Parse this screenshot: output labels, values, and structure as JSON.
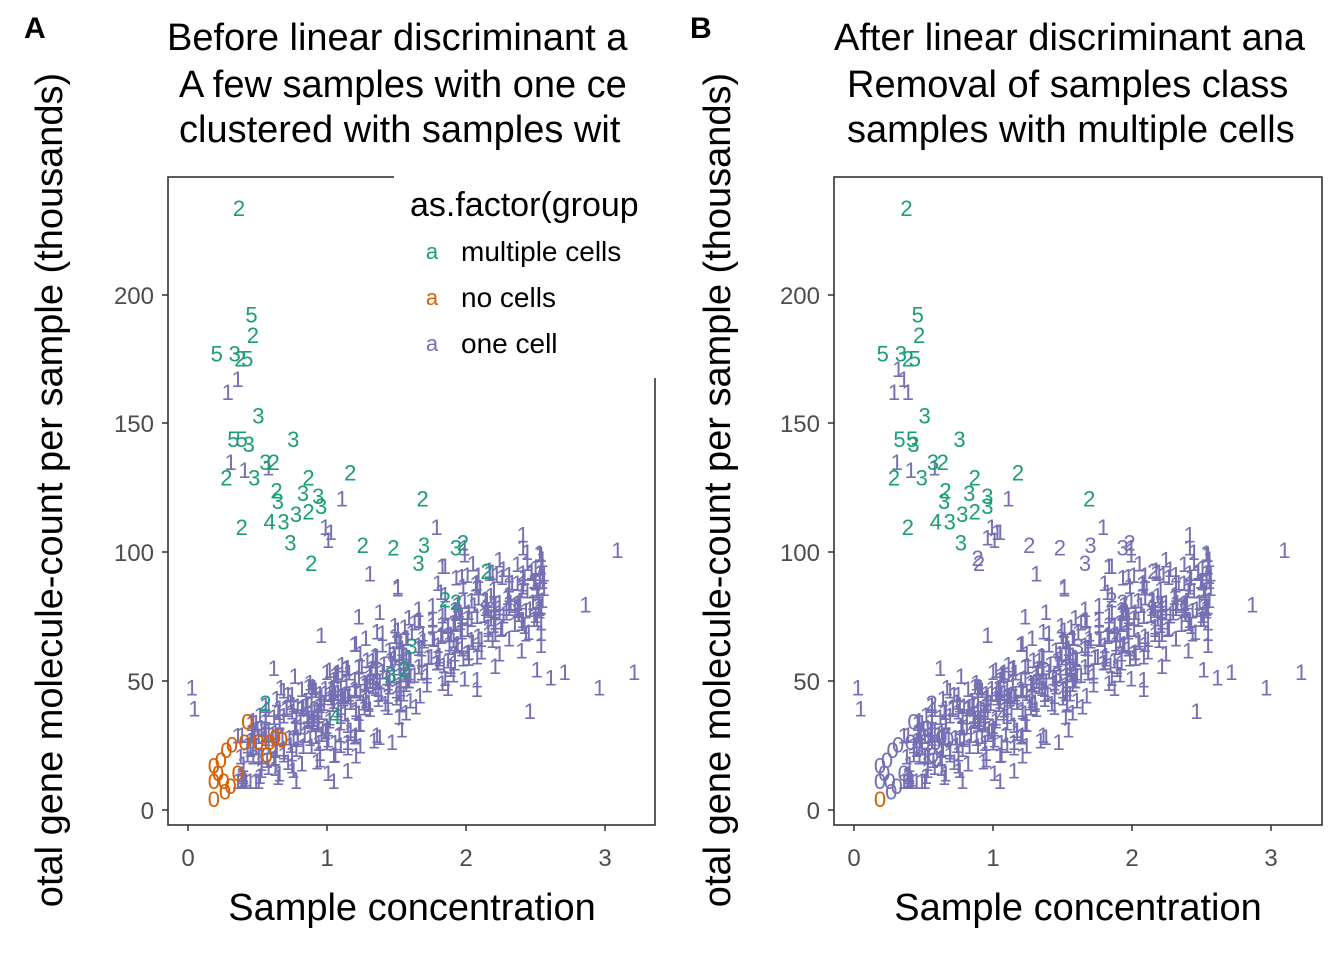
{
  "colors": {
    "multiple cells": "#1b9e77",
    "no cells": "#d95f02",
    "one cell": "#7570b3"
  },
  "chart_data": [
    {
      "type": "scatter",
      "panel_tag": "A",
      "title": [
        "Before linear discriminant a",
        "A few samples with one ce",
        "clustered with samples wit"
      ],
      "xlabel": "Sample concentration",
      "ylabel": "otal gene molecule-count per sample (thousands)",
      "xlim": [
        -0.15,
        3.35
      ],
      "ylim": [
        -5,
        245
      ],
      "xticks": [
        "0",
        "1",
        "2",
        "3"
      ],
      "yticks": [
        "0",
        "50",
        "100",
        "150",
        "200"
      ],
      "grid": false,
      "legend": {
        "title": "as.factor(group",
        "key_symbol": "a",
        "placement": "top-right",
        "entries": [
          "multiple cells",
          "no cells",
          "one cell"
        ]
      },
      "series": [
        {
          "name": "multiple cells",
          "points": [
            [
              0.36,
              233,
              "2"
            ],
            [
              0.45,
              192,
              "5"
            ],
            [
              0.46,
              184,
              "2"
            ],
            [
              0.2,
              177,
              "5"
            ],
            [
              0.33,
              177,
              "3"
            ],
            [
              0.37,
              175,
              "2"
            ],
            [
              0.42,
              175,
              "5"
            ],
            [
              0.5,
              153,
              "3"
            ],
            [
              0.32,
              144,
              "5"
            ],
            [
              0.38,
              144,
              "5"
            ],
            [
              0.43,
              142,
              "3"
            ],
            [
              0.55,
              135,
              "3"
            ],
            [
              0.61,
              135,
              "2"
            ],
            [
              0.75,
              144,
              "3"
            ],
            [
              0.27,
              129,
              "2"
            ],
            [
              0.47,
              129,
              "3"
            ],
            [
              0.86,
              129,
              "2"
            ],
            [
              1.16,
              131,
              "2"
            ],
            [
              0.63,
              124,
              "2"
            ],
            [
              0.82,
              123,
              "3"
            ],
            [
              0.93,
              122,
              "3"
            ],
            [
              0.64,
              120,
              "3"
            ],
            [
              0.86,
              116,
              "2"
            ],
            [
              0.95,
              118,
              "3"
            ],
            [
              0.38,
              110,
              "2"
            ],
            [
              0.58,
              112,
              "4"
            ],
            [
              0.68,
              112,
              "3"
            ],
            [
              0.77,
              115,
              "3"
            ],
            [
              0.73,
              104,
              "3"
            ],
            [
              0.88,
              96,
              "2"
            ],
            [
              1.25,
              103,
              "2"
            ],
            [
              1.47,
              102,
              "2"
            ],
            [
              1.69,
              103,
              "3"
            ],
            [
              1.65,
              96,
              "3"
            ],
            [
              1.68,
              121,
              "2"
            ],
            [
              1.92,
              102,
              "3"
            ],
            [
              1.97,
              104,
              "2"
            ],
            [
              2.14,
              93,
              "2"
            ],
            [
              1.92,
              81,
              "2"
            ],
            [
              0.55,
              42,
              "2"
            ],
            [
              1.05,
              37,
              "4"
            ],
            [
              1.45,
              53,
              "3"
            ],
            [
              1.6,
              64,
              "3"
            ],
            [
              1.84,
              82,
              "2"
            ],
            [
              1.55,
              55,
              "2"
            ]
          ]
        },
        {
          "name": "no cells",
          "points": [
            [
              0.18,
              18,
              "0"
            ],
            [
              0.18,
              12,
              "0"
            ],
            [
              0.21,
              15,
              "0"
            ],
            [
              0.25,
              12,
              "0"
            ],
            [
              0.18,
              5,
              "0"
            ],
            [
              0.26,
              8,
              "0"
            ],
            [
              0.3,
              10,
              "0"
            ],
            [
              0.27,
              24,
              "0"
            ],
            [
              0.31,
              26,
              "0"
            ],
            [
              0.35,
              15,
              "0"
            ],
            [
              0.4,
              27,
              "0"
            ],
            [
              0.42,
              35,
              "0"
            ],
            [
              0.5,
              27,
              "0"
            ],
            [
              0.58,
              27,
              "0"
            ],
            [
              0.62,
              29,
              "0"
            ],
            [
              0.67,
              28,
              "0"
            ],
            [
              0.56,
              22,
              "0"
            ],
            [
              0.23,
              20,
              "0"
            ]
          ]
        },
        {
          "name": "one cell",
          "points": []
        }
      ]
    },
    {
      "type": "scatter",
      "panel_tag": "B",
      "title": [
        "After linear discriminant ana",
        "Removal of samples class",
        "samples with multiple cells"
      ],
      "xlabel": "Sample concentration",
      "ylabel": "otal gene molecule-count per sample (thousands)",
      "xlim": [
        -0.15,
        3.35
      ],
      "ylim": [
        -5,
        245
      ],
      "xticks": [
        "0",
        "1",
        "2",
        "3"
      ],
      "yticks": [
        "0",
        "50",
        "100",
        "150",
        "200"
      ],
      "grid": false,
      "series": [
        {
          "name": "multiple cells",
          "points": [
            [
              0.37,
              233,
              "2"
            ],
            [
              0.45,
              192,
              "5"
            ],
            [
              0.46,
              184,
              "2"
            ],
            [
              0.2,
              177,
              "5"
            ],
            [
              0.33,
              177,
              "3"
            ],
            [
              0.38,
              175,
              "2"
            ],
            [
              0.43,
              175,
              "5"
            ],
            [
              0.5,
              153,
              "3"
            ],
            [
              0.32,
              144,
              "5"
            ],
            [
              0.41,
              144,
              "5"
            ],
            [
              0.42,
              142,
              "3"
            ],
            [
              0.56,
              135,
              "3"
            ],
            [
              0.63,
              135,
              "2"
            ],
            [
              0.75,
              144,
              "3"
            ],
            [
              0.28,
              129,
              "2"
            ],
            [
              0.48,
              129,
              "3"
            ],
            [
              0.86,
              129,
              "2"
            ],
            [
              1.17,
              131,
              "2"
            ],
            [
              0.65,
              124,
              "2"
            ],
            [
              0.82,
              123,
              "3"
            ],
            [
              0.95,
              122,
              "3"
            ],
            [
              0.64,
              120,
              "3"
            ],
            [
              0.86,
              116,
              "2"
            ],
            [
              0.95,
              118,
              "3"
            ],
            [
              0.38,
              110,
              "2"
            ],
            [
              0.58,
              112,
              "4"
            ],
            [
              0.68,
              112,
              "3"
            ],
            [
              0.77,
              115,
              "3"
            ],
            [
              0.76,
              104,
              "3"
            ],
            [
              1.68,
              121,
              "2"
            ]
          ]
        },
        {
          "name": "no cells",
          "points": [
            [
              0.18,
              5,
              "0"
            ]
          ]
        },
        {
          "name": "one cell",
          "points": []
        }
      ]
    }
  ]
}
